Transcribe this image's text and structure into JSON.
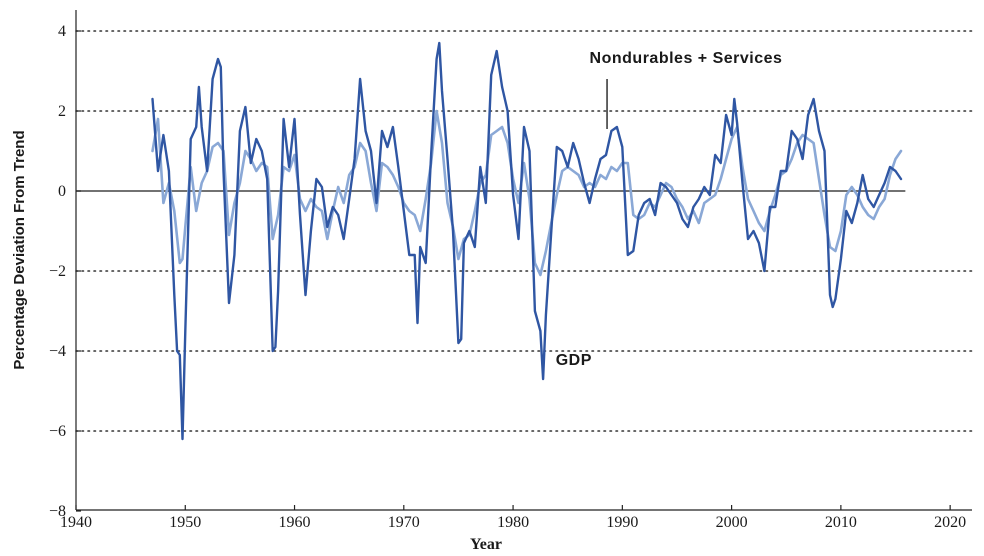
{
  "chart_data": {
    "type": "line",
    "title": "",
    "xlabel": "Year",
    "ylabel": "Percentage Deviation From Trend",
    "xlim": [
      1940,
      2022
    ],
    "ylim": [
      -8,
      4.5
    ],
    "xticks": [
      1940,
      1950,
      1960,
      1970,
      1980,
      1990,
      2000,
      2010,
      2020
    ],
    "yticks": [
      4,
      2,
      0,
      -2,
      -4,
      -6,
      -8
    ],
    "ytick_labels": [
      "4",
      "2",
      "0",
      "−2",
      "−4",
      "−6",
      "−8"
    ],
    "grid": "horizontal dotted",
    "colors": {
      "gdp": "#2f56a3",
      "consumption": "#8aa8d6",
      "zero_line": "#444444",
      "axis": "#222222"
    },
    "annotations": [
      {
        "text": "Nondurables + Services",
        "series": "Nondurables + Services"
      },
      {
        "text": "GDP",
        "series": "GDP"
      }
    ],
    "series": [
      {
        "name": "GDP",
        "x": [
          1947.0,
          1947.5,
          1948.0,
          1948.5,
          1949.0,
          1949.25,
          1949.5,
          1949.75,
          1950.0,
          1950.5,
          1951.0,
          1951.25,
          1951.5,
          1952.0,
          1952.5,
          1953.0,
          1953.25,
          1953.5,
          1954.0,
          1954.5,
          1955.0,
          1955.5,
          1956.0,
          1956.5,
          1957.0,
          1957.5,
          1958.0,
          1958.25,
          1958.5,
          1959.0,
          1959.5,
          1960.0,
          1960.5,
          1961.0,
          1961.5,
          1962.0,
          1962.5,
          1963.0,
          1963.5,
          1964.0,
          1964.5,
          1965.0,
          1965.5,
          1966.0,
          1966.5,
          1967.0,
          1967.5,
          1968.0,
          1968.5,
          1969.0,
          1969.5,
          1970.0,
          1970.5,
          1971.0,
          1971.25,
          1971.5,
          1972.0,
          1972.5,
          1973.0,
          1973.25,
          1973.5,
          1974.0,
          1974.5,
          1975.0,
          1975.25,
          1975.5,
          1976.0,
          1976.5,
          1977.0,
          1977.5,
          1978.0,
          1978.5,
          1979.0,
          1979.5,
          1980.0,
          1980.5,
          1981.0,
          1981.5,
          1982.0,
          1982.5,
          1982.75,
          1983.0,
          1983.5,
          1984.0,
          1984.5,
          1985.0,
          1985.5,
          1986.0,
          1986.5,
          1987.0,
          1987.5,
          1988.0,
          1988.5,
          1989.0,
          1989.5,
          1990.0,
          1990.5,
          1991.0,
          1991.5,
          1992.0,
          1992.5,
          1993.0,
          1993.5,
          1994.0,
          1994.5,
          1995.0,
          1995.5,
          1996.0,
          1996.5,
          1997.0,
          1997.5,
          1998.0,
          1998.5,
          1999.0,
          1999.5,
          2000.0,
          2000.25,
          2000.5,
          2001.0,
          2001.5,
          2002.0,
          2002.5,
          2003.0,
          2003.5,
          2004.0,
          2004.5,
          2005.0,
          2005.5,
          2006.0,
          2006.5,
          2007.0,
          2007.5,
          2008.0,
          2008.5,
          2009.0,
          2009.25,
          2009.5,
          2010.0,
          2010.5,
          2011.0,
          2011.5,
          2012.0,
          2012.5,
          2013.0,
          2013.5,
          2014.0,
          2014.5,
          2015.0,
          2015.5
        ],
        "y": [
          2.3,
          0.5,
          1.4,
          0.5,
          -2.6,
          -4.0,
          -4.1,
          -6.2,
          -3.5,
          1.3,
          1.6,
          2.6,
          1.6,
          0.5,
          2.8,
          3.3,
          3.1,
          0.5,
          -2.8,
          -1.6,
          1.5,
          2.1,
          0.7,
          1.3,
          1.0,
          0.3,
          -4.0,
          -3.9,
          -2.5,
          1.8,
          0.6,
          1.8,
          -0.6,
          -2.6,
          -1.0,
          0.3,
          0.1,
          -0.9,
          -0.4,
          -0.6,
          -1.2,
          -0.2,
          0.8,
          2.8,
          1.5,
          1.0,
          -0.3,
          1.5,
          1.1,
          1.6,
          0.6,
          -0.5,
          -1.6,
          -1.6,
          -3.3,
          -1.4,
          -1.8,
          0.9,
          3.3,
          3.7,
          2.5,
          0.8,
          -1.0,
          -3.8,
          -3.7,
          -1.3,
          -1.0,
          -1.4,
          0.6,
          -0.3,
          2.9,
          3.5,
          2.6,
          2.0,
          -0.1,
          -1.2,
          1.6,
          1.0,
          -3.0,
          -3.5,
          -4.7,
          -3.1,
          -1.0,
          1.1,
          1.0,
          0.6,
          1.2,
          0.8,
          0.2,
          -0.3,
          0.3,
          0.8,
          0.9,
          1.5,
          1.6,
          1.1,
          -1.6,
          -1.5,
          -0.6,
          -0.3,
          -0.2,
          -0.6,
          0.2,
          0.1,
          -0.1,
          -0.3,
          -0.7,
          -0.9,
          -0.4,
          -0.2,
          0.1,
          -0.1,
          0.9,
          0.7,
          1.9,
          1.4,
          2.3,
          1.7,
          0.2,
          -1.2,
          -1.0,
          -1.3,
          -2.0,
          -0.4,
          -0.4,
          0.5,
          0.5,
          1.5,
          1.3,
          0.8,
          1.9,
          2.3,
          1.5,
          1.0,
          -2.6,
          -2.9,
          -2.7,
          -1.7,
          -0.5,
          -0.8,
          -0.3,
          0.4,
          -0.2,
          -0.4,
          -0.1,
          0.2,
          0.6,
          0.5,
          0.3
        ]
      },
      {
        "name": "Nondurables + Services",
        "x": [
          1947.0,
          1947.5,
          1948.0,
          1948.5,
          1949.0,
          1949.5,
          1949.75,
          1950.0,
          1950.5,
          1951.0,
          1951.5,
          1952.0,
          1952.5,
          1953.0,
          1953.5,
          1954.0,
          1954.5,
          1955.0,
          1955.5,
          1956.0,
          1956.5,
          1957.0,
          1957.5,
          1958.0,
          1958.5,
          1959.0,
          1959.5,
          1960.0,
          1960.5,
          1961.0,
          1961.5,
          1962.0,
          1962.5,
          1963.0,
          1963.5,
          1964.0,
          1964.5,
          1965.0,
          1965.5,
          1966.0,
          1966.5,
          1967.0,
          1967.5,
          1968.0,
          1968.5,
          1969.0,
          1969.5,
          1970.0,
          1970.5,
          1971.0,
          1971.5,
          1972.0,
          1972.5,
          1973.0,
          1973.5,
          1974.0,
          1974.5,
          1975.0,
          1975.5,
          1976.0,
          1976.5,
          1977.0,
          1977.5,
          1978.0,
          1978.5,
          1979.0,
          1979.5,
          1980.0,
          1980.5,
          1981.0,
          1981.5,
          1982.0,
          1982.5,
          1983.0,
          1983.5,
          1984.0,
          1984.5,
          1985.0,
          1985.5,
          1986.0,
          1986.5,
          1987.0,
          1987.5,
          1988.0,
          1988.5,
          1989.0,
          1989.5,
          1990.0,
          1990.5,
          1991.0,
          1991.5,
          1992.0,
          1992.5,
          1993.0,
          1993.5,
          1994.0,
          1994.5,
          1995.0,
          1995.5,
          1996.0,
          1996.5,
          1997.0,
          1997.5,
          1998.0,
          1998.5,
          1999.0,
          1999.5,
          2000.0,
          2000.5,
          2001.0,
          2001.5,
          2002.0,
          2002.5,
          2003.0,
          2003.5,
          2004.0,
          2004.5,
          2005.0,
          2005.5,
          2006.0,
          2006.5,
          2007.0,
          2007.5,
          2008.0,
          2008.5,
          2009.0,
          2009.5,
          2010.0,
          2010.5,
          2011.0,
          2011.5,
          2012.0,
          2012.5,
          2013.0,
          2013.5,
          2014.0,
          2014.5,
          2015.0,
          2015.5
        ],
        "y": [
          1.0,
          1.8,
          -0.3,
          0.2,
          -0.5,
          -1.8,
          -1.7,
          -0.9,
          0.6,
          -0.5,
          0.2,
          0.5,
          1.1,
          1.2,
          1.0,
          -1.1,
          -0.3,
          0.2,
          1.0,
          0.8,
          0.5,
          0.7,
          0.6,
          -1.2,
          -0.6,
          0.6,
          0.5,
          0.9,
          -0.2,
          -0.5,
          -0.2,
          -0.4,
          -0.5,
          -1.2,
          -0.5,
          0.1,
          -0.3,
          0.4,
          0.6,
          1.2,
          1.0,
          0.2,
          -0.5,
          0.7,
          0.6,
          0.4,
          0.1,
          -0.3,
          -0.5,
          -0.6,
          -1.0,
          -0.2,
          0.7,
          2.0,
          1.2,
          -0.3,
          -0.9,
          -1.7,
          -1.2,
          -1.1,
          -0.5,
          0.2,
          0.4,
          1.4,
          1.5,
          1.6,
          1.2,
          0.3,
          -0.3,
          0.7,
          -0.2,
          -1.8,
          -2.1,
          -1.5,
          -0.8,
          -0.1,
          0.5,
          0.6,
          0.5,
          0.4,
          0.1,
          0.2,
          0.1,
          0.4,
          0.3,
          0.6,
          0.5,
          0.7,
          0.7,
          -0.6,
          -0.7,
          -0.6,
          -0.3,
          -0.4,
          -0.1,
          0.2,
          0.1,
          -0.2,
          -0.4,
          -0.7,
          -0.5,
          -0.8,
          -0.3,
          -0.2,
          -0.1,
          0.3,
          0.8,
          1.3,
          1.6,
          0.6,
          -0.2,
          -0.5,
          -0.8,
          -1.0,
          -0.5,
          -0.1,
          0.4,
          0.5,
          0.8,
          1.2,
          1.4,
          1.3,
          1.2,
          0.3,
          -0.6,
          -1.4,
          -1.5,
          -1.0,
          -0.1,
          0.1,
          -0.1,
          -0.4,
          -0.6,
          -0.7,
          -0.4,
          -0.2,
          0.4,
          0.8,
          1.0
        ]
      }
    ]
  }
}
